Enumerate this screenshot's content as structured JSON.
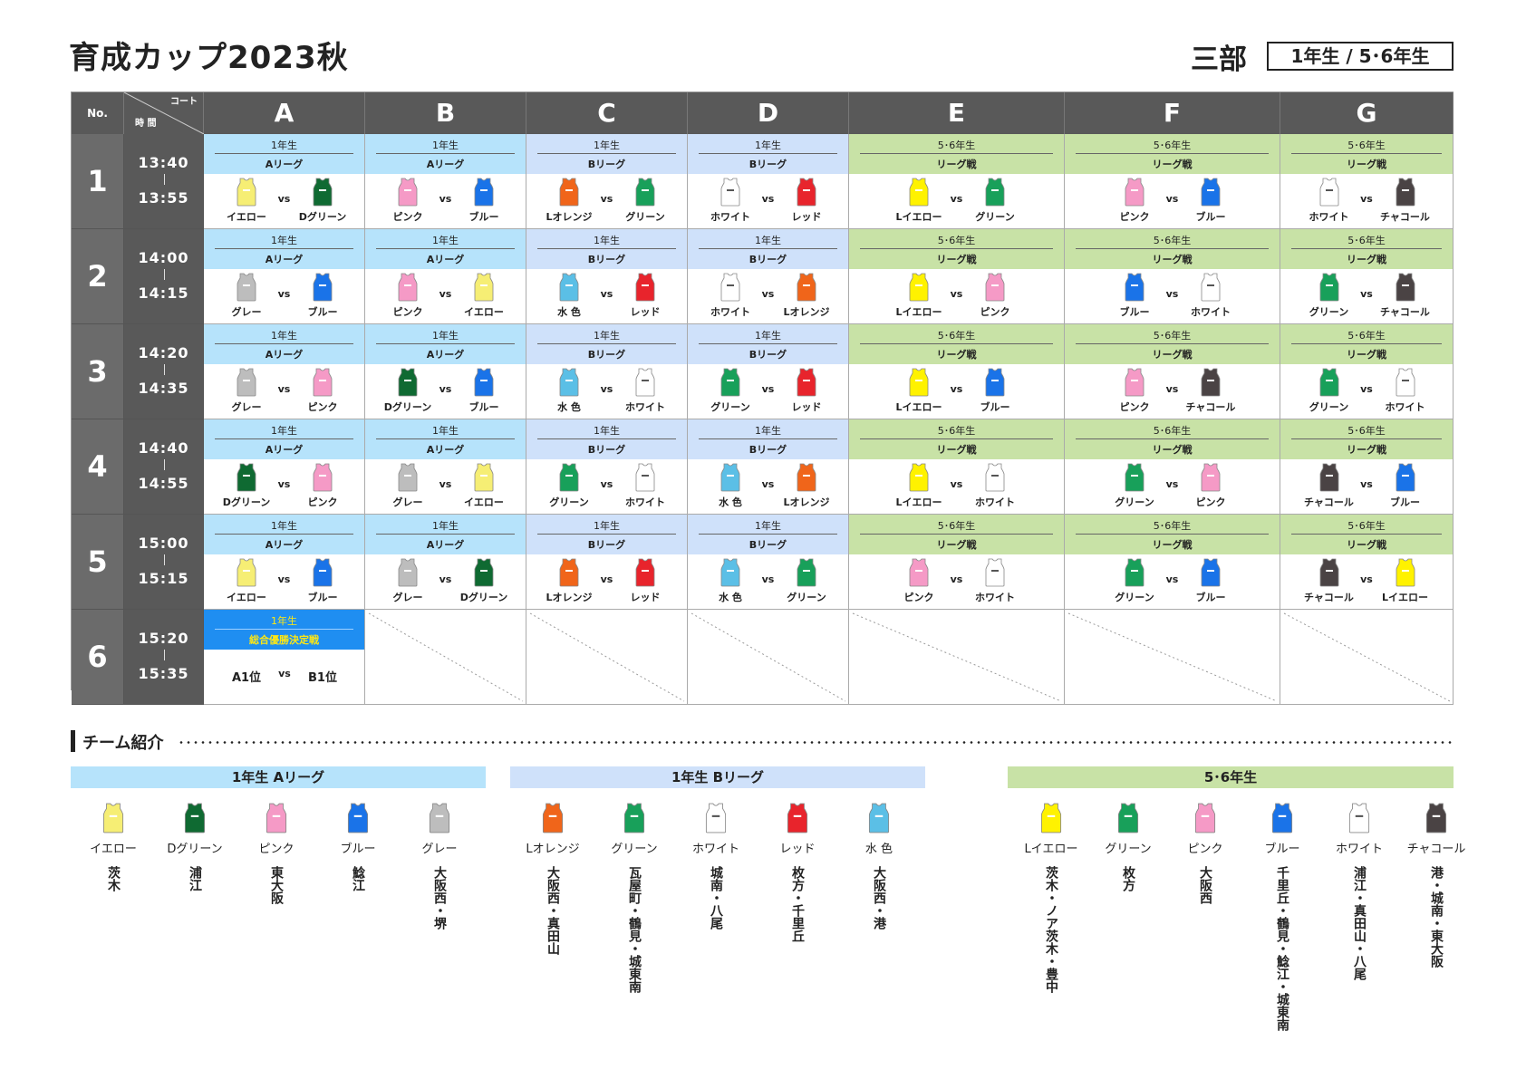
{
  "title": "育成カップ2023秋",
  "division": "三部",
  "grades": "1年生 / 5･6年生",
  "table": {
    "no_header": "No.",
    "court_label": "コート",
    "time_label": "時 間",
    "courts": [
      "A",
      "B",
      "C",
      "D",
      "E",
      "F",
      "G"
    ],
    "rows": [
      {
        "no": "1",
        "start": "13:40",
        "end": "13:55",
        "games": [
          {
            "grade": "1年生",
            "league": "Aリーグ",
            "home": "イエロー",
            "away": "Dグリーン"
          },
          {
            "grade": "1年生",
            "league": "Aリーグ",
            "home": "ピンク",
            "away": "ブルー"
          },
          {
            "grade": "1年生",
            "league": "Bリーグ",
            "home": "Lオレンジ",
            "away": "グリーン"
          },
          {
            "grade": "1年生",
            "league": "Bリーグ",
            "home": "ホワイト",
            "away": "レッド"
          },
          {
            "grade": "5･6年生",
            "league": "リーグ戦",
            "home": "Lイエロー",
            "away": "グリーン"
          },
          {
            "grade": "5･6年生",
            "league": "リーグ戦",
            "home": "ピンク",
            "away": "ブルー"
          },
          {
            "grade": "5･6年生",
            "league": "リーグ戦",
            "home": "ホワイト",
            "away": "チャコール"
          }
        ]
      },
      {
        "no": "2",
        "start": "14:00",
        "end": "14:15",
        "games": [
          {
            "grade": "1年生",
            "league": "Aリーグ",
            "home": "グレー",
            "away": "ブルー"
          },
          {
            "grade": "1年生",
            "league": "Aリーグ",
            "home": "ピンク",
            "away": "イエロー"
          },
          {
            "grade": "1年生",
            "league": "Bリーグ",
            "home": "水 色",
            "away": "レッド"
          },
          {
            "grade": "1年生",
            "league": "Bリーグ",
            "home": "ホワイト",
            "away": "Lオレンジ"
          },
          {
            "grade": "5･6年生",
            "league": "リーグ戦",
            "home": "Lイエロー",
            "away": "ピンク"
          },
          {
            "grade": "5･6年生",
            "league": "リーグ戦",
            "home": "ブルー",
            "away": "ホワイト"
          },
          {
            "grade": "5･6年生",
            "league": "リーグ戦",
            "home": "グリーン",
            "away": "チャコール"
          }
        ]
      },
      {
        "no": "3",
        "start": "14:20",
        "end": "14:35",
        "games": [
          {
            "grade": "1年生",
            "league": "Aリーグ",
            "home": "グレー",
            "away": "ピンク"
          },
          {
            "grade": "1年生",
            "league": "Aリーグ",
            "home": "Dグリーン",
            "away": "ブルー"
          },
          {
            "grade": "1年生",
            "league": "Bリーグ",
            "home": "水 色",
            "away": "ホワイト"
          },
          {
            "grade": "1年生",
            "league": "Bリーグ",
            "home": "グリーン",
            "away": "レッド"
          },
          {
            "grade": "5･6年生",
            "league": "リーグ戦",
            "home": "Lイエロー",
            "away": "ブルー"
          },
          {
            "grade": "5･6年生",
            "league": "リーグ戦",
            "home": "ピンク",
            "away": "チャコール"
          },
          {
            "grade": "5･6年生",
            "league": "リーグ戦",
            "home": "グリーン",
            "away": "ホワイト"
          }
        ]
      },
      {
        "no": "4",
        "start": "14:40",
        "end": "14:55",
        "games": [
          {
            "grade": "1年生",
            "league": "Aリーグ",
            "home": "Dグリーン",
            "away": "ピンク"
          },
          {
            "grade": "1年生",
            "league": "Aリーグ",
            "home": "グレー",
            "away": "イエロー"
          },
          {
            "grade": "1年生",
            "league": "Bリーグ",
            "home": "グリーン",
            "away": "ホワイト"
          },
          {
            "grade": "1年生",
            "league": "Bリーグ",
            "home": "水 色",
            "away": "Lオレンジ"
          },
          {
            "grade": "5･6年生",
            "league": "リーグ戦",
            "home": "Lイエロー",
            "away": "ホワイト"
          },
          {
            "grade": "5･6年生",
            "league": "リーグ戦",
            "home": "グリーン",
            "away": "ピンク"
          },
          {
            "grade": "5･6年生",
            "league": "リーグ戦",
            "home": "チャコール",
            "away": "ブルー"
          }
        ]
      },
      {
        "no": "5",
        "start": "15:00",
        "end": "15:15",
        "games": [
          {
            "grade": "1年生",
            "league": "Aリーグ",
            "home": "イエロー",
            "away": "ブルー"
          },
          {
            "grade": "1年生",
            "league": "Aリーグ",
            "home": "グレー",
            "away": "Dグリーン"
          },
          {
            "grade": "1年生",
            "league": "Bリーグ",
            "home": "Lオレンジ",
            "away": "レッド"
          },
          {
            "grade": "1年生",
            "league": "Bリーグ",
            "home": "水 色",
            "away": "グリーン"
          },
          {
            "grade": "5･6年生",
            "league": "リーグ戦",
            "home": "ピンク",
            "away": "ホワイト"
          },
          {
            "grade": "5･6年生",
            "league": "リーグ戦",
            "home": "グリーン",
            "away": "ブルー"
          },
          {
            "grade": "5･6年生",
            "league": "リーグ戦",
            "home": "チャコール",
            "away": "Lイエロー"
          }
        ]
      },
      {
        "no": "6",
        "start": "15:20",
        "end": "15:35",
        "final": {
          "grade": "1年生",
          "league": "総合優勝決定戦",
          "home": "A1位",
          "away": "B1位"
        }
      }
    ],
    "vs": "vs"
  },
  "intro": {
    "title": "チーム紹介",
    "groups": [
      {
        "label": "1年生 Aリーグ",
        "color": "#b6e3fb",
        "teams": [
          {
            "name": "イエロー",
            "school": "茨木"
          },
          {
            "name": "Dグリーン",
            "school": "浦江"
          },
          {
            "name": "ピンク",
            "school": "東大阪"
          },
          {
            "name": "ブルー",
            "school": "鯰江"
          },
          {
            "name": "グレー",
            "school": "大阪西・堺"
          }
        ]
      },
      {
        "label": "1年生 Bリーグ",
        "color": "#cfe1fa",
        "teams": [
          {
            "name": "Lオレンジ",
            "school": "大阪西・真田山"
          },
          {
            "name": "グリーン",
            "school": "瓦屋町・鶴見・城東南"
          },
          {
            "name": "ホワイト",
            "school": "城南・八尾"
          },
          {
            "name": "レッド",
            "school": "枚方・千里丘"
          },
          {
            "name": "水 色",
            "school": "大阪西・港"
          }
        ]
      },
      {
        "label": "5･6年生",
        "color": "#c8e2a6",
        "teams": [
          {
            "name": "Lイエロー",
            "school": "茨木・ノア茨木・豊中"
          },
          {
            "name": "グリーン",
            "school": "枚方"
          },
          {
            "name": "ピンク",
            "school": "大阪西"
          },
          {
            "name": "ブルー",
            "school": "千里丘・鶴見・鯰江・城東南"
          },
          {
            "name": "ホワイト",
            "school": "浦江・真田山・八尾"
          },
          {
            "name": "チャコール",
            "school": "港・城南・東大阪"
          }
        ]
      }
    ]
  },
  "colors": {
    "band_a": "#b6e3fb",
    "band_b": "#cfe1fa",
    "band_56": "#c8e2a6",
    "final_band": "#1f8ef1",
    "final_text": "#ffe812",
    "header_bg": "#595959"
  },
  "bib_colors": {
    "イエロー": "#f6ee74",
    "Dグリーン": "#0f6a32",
    "ピンク": "#f59ac6",
    "ブルー": "#1a73e8",
    "グレー": "#bdbdbd",
    "Lオレンジ": "#f0651a",
    "グリーン": "#18a05a",
    "ホワイト": "#ffffff",
    "レッド": "#e8242c",
    "水 色": "#5bbfe6",
    "Lイエロー": "#fff200",
    "チャコール": "#4a4344"
  }
}
